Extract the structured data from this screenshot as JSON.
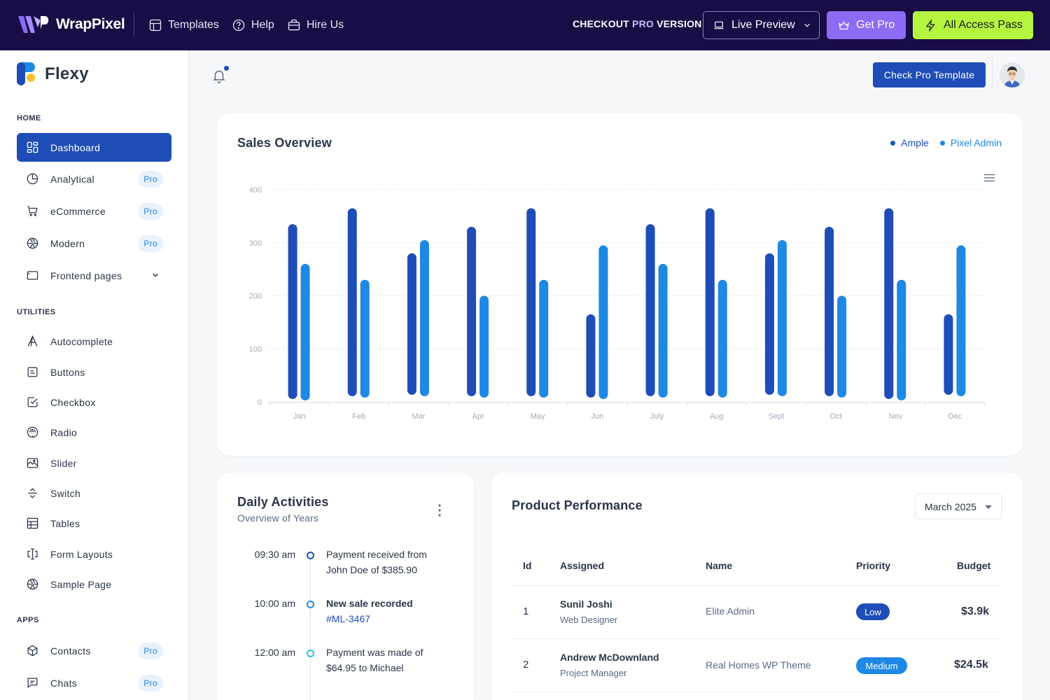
{
  "topbar": {
    "brand": "WrapPixel",
    "nav": [
      {
        "label": "Templates",
        "icon": "layout-icon"
      },
      {
        "label": "Help",
        "icon": "help-circle-icon"
      },
      {
        "label": "Hire Us",
        "icon": "briefcase-icon"
      }
    ],
    "checkout_prefix": "CHECKOUT ",
    "checkout_pro": "PRO",
    "checkout_suffix": " VERSION",
    "live_preview": "Live Preview",
    "get_pro": "Get Pro",
    "all_access": "All Access Pass",
    "colors": {
      "bg": "#190d45",
      "get_pro": "#8c6cf5",
      "all_access": "#b5f53f"
    }
  },
  "sidebar": {
    "brand": "Flexy",
    "home_title": "HOME",
    "home_items": [
      {
        "label": "Dashboard",
        "icon": "dashboard-icon",
        "active": true
      },
      {
        "label": "Analytical",
        "icon": "pie-chart-icon",
        "badge": "Pro"
      },
      {
        "label": "eCommerce",
        "icon": "cart-icon",
        "badge": "Pro"
      },
      {
        "label": "Modern",
        "icon": "aperture-icon",
        "badge": "Pro"
      },
      {
        "label": "Frontend pages",
        "icon": "window-icon"
      }
    ],
    "utilities_title": "UTILITIES",
    "utility_items": [
      {
        "label": "Autocomplete",
        "icon": "letter-a-icon"
      },
      {
        "label": "Buttons",
        "icon": "button-icon"
      },
      {
        "label": "Checkbox",
        "icon": "checkbox-icon"
      },
      {
        "label": "Radio",
        "icon": "radio-icon"
      },
      {
        "label": "Slider",
        "icon": "slider-icon"
      },
      {
        "label": "Switch",
        "icon": "switch-icon"
      },
      {
        "label": "Tables",
        "icon": "table-icon"
      },
      {
        "label": "Form Layouts",
        "icon": "form-layout-icon"
      },
      {
        "label": "Sample Page",
        "icon": "aperture-icon"
      }
    ],
    "apps_title": "APPS",
    "app_items": [
      {
        "label": "Contacts",
        "icon": "box-icon",
        "badge": "Pro"
      },
      {
        "label": "Chats",
        "icon": "message-icon",
        "badge": "Pro"
      }
    ]
  },
  "header": {
    "check_pro": "Check Pro Template"
  },
  "sales": {
    "title": "Sales Overview",
    "legend": [
      {
        "label": "Ample",
        "color": "#1e4db7"
      },
      {
        "label": "Pixel Admin",
        "color": "#1e88e5"
      }
    ]
  },
  "chart_data": {
    "type": "bar",
    "title": "Sales Overview",
    "categories": [
      "Jan",
      "Feb",
      "Mar",
      "Apr",
      "May",
      "Jun",
      "July",
      "Aug",
      "Sept",
      "Oct",
      "Nov",
      "Dec"
    ],
    "series": [
      {
        "name": "Ample",
        "color": "#1e4db7",
        "values": [
          335,
          365,
          280,
          330,
          365,
          165,
          335,
          365,
          280,
          330,
          365,
          165
        ]
      },
      {
        "name": "Pixel Admin",
        "color": "#1e88e5",
        "values": [
          260,
          230,
          305,
          200,
          230,
          295,
          260,
          230,
          305,
          200,
          230,
          295
        ]
      }
    ],
    "yticks": [
      0,
      100,
      200,
      300,
      400
    ],
    "ylim": [
      0,
      400
    ],
    "grid": true,
    "legend_position": "top-right"
  },
  "daily": {
    "title": "Daily Activities",
    "subtitle": "Overview of Years",
    "items": [
      {
        "time": "09:30 am",
        "line1": "Payment received from",
        "line2": "John Doe of $385.90",
        "bold": false,
        "color": "#1e4db7"
      },
      {
        "time": "10:00 am",
        "line1": "New sale recorded",
        "line2": "#ML-3467",
        "bold": true,
        "color": "#1e88e5"
      },
      {
        "time": "12:00 am",
        "line1": "Payment was made of",
        "line2": "$64.95 to Michael",
        "bold": false,
        "color": "#26c6da"
      }
    ]
  },
  "performance": {
    "title": "Product Performance",
    "month": "March 2025",
    "headers": [
      "Id",
      "Assigned",
      "Name",
      "Priority",
      "Budget"
    ],
    "rows": [
      {
        "id": "1",
        "assigned": "Sunil Joshi",
        "role": "Web Designer",
        "name": "Elite Admin",
        "priority": "Low",
        "priority_color": "#1e4db7",
        "budget": "$3.9k"
      },
      {
        "id": "2",
        "assigned": "Andrew McDownland",
        "role": "Project Manager",
        "name": "Real Homes WP Theme",
        "priority": "Medium",
        "priority_color": "#1e88e5",
        "budget": "$24.5k"
      }
    ]
  }
}
